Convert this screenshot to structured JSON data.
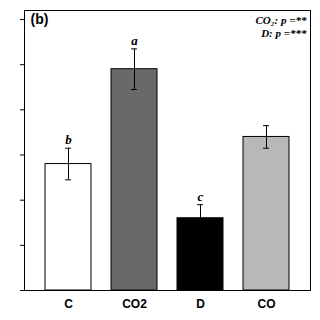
{
  "chart_data": {
    "type": "bar",
    "title": "(b)",
    "categories": [
      "C",
      "CO2",
      "D",
      "CO"
    ],
    "values": [
      2.8,
      4.9,
      1.6,
      3.4
    ],
    "errors": [
      0.35,
      0.45,
      0.3,
      0.25
    ],
    "colors": [
      "#ffffff",
      "#696969",
      "#000000",
      "#b8b8b8"
    ],
    "letters": [
      "b",
      "a",
      "c",
      null
    ],
    "annotations": [
      "CO₂: p =**",
      "D: p =***"
    ],
    "ylim": [
      0,
      6.2
    ],
    "yticks": [
      0,
      1,
      2,
      3,
      4,
      5,
      6
    ],
    "grid": false,
    "tick_labels": "x"
  }
}
